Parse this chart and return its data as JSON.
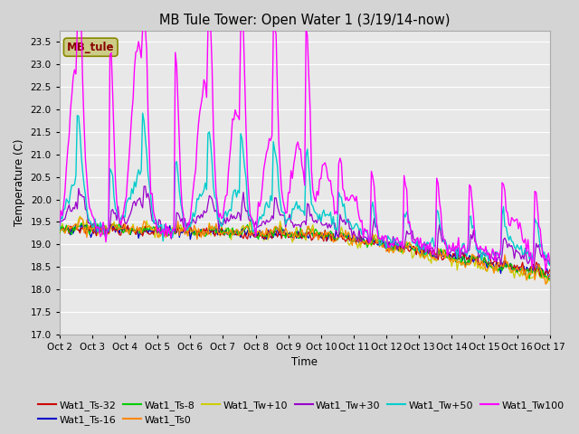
{
  "title": "MB Tule Tower: Open Water 1 (3/19/14-now)",
  "xlabel": "Time",
  "ylabel": "Temperature (C)",
  "ylim": [
    17.0,
    23.75
  ],
  "yticks": [
    17.0,
    17.5,
    18.0,
    18.5,
    19.0,
    19.5,
    20.0,
    20.5,
    21.0,
    21.5,
    22.0,
    22.5,
    23.0,
    23.5
  ],
  "xlim": [
    0,
    360
  ],
  "n_hours": 361,
  "plot_bg_color": "#e8e8e8",
  "fig_bg_color": "#d4d4d4",
  "series_colors": {
    "Wat1_Ts-32": "#cc0000",
    "Wat1_Ts-16": "#0000cc",
    "Wat1_Ts-8": "#00cc00",
    "Wat1_Ts0": "#ff8800",
    "Wat1_Tw+10": "#cccc00",
    "Wat1_Tw+30": "#9900cc",
    "Wat1_Tw+50": "#00cccc",
    "Wat1_Tw100": "#ff00ff"
  },
  "legend_box_color": "#cccc88",
  "legend_box_text": "MB_tule",
  "legend_box_text_color": "#880000",
  "xtick_labels": [
    "Oct 2",
    "Oct 3",
    "Oct 4",
    "Oct 5",
    "Oct 6",
    "Oct 7",
    "Oct 8",
    "Oct 9",
    "Oct 10",
    "Oct 11",
    "Oct 12",
    "Oct 13",
    "Oct 14",
    "Oct 15",
    "Oct 16",
    "Oct 17"
  ],
  "xtick_positions": [
    0,
    24,
    48,
    72,
    96,
    120,
    144,
    168,
    192,
    216,
    240,
    264,
    288,
    312,
    336,
    360
  ]
}
